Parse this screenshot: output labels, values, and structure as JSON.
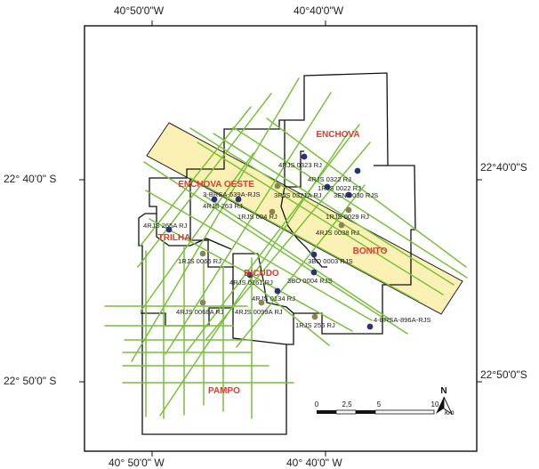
{
  "coordinates": {
    "top_left": "40°50'0\"W",
    "top_right": "40°40'0\"W",
    "bottom_left": "40° 50'0\" W",
    "bottom_right": "40° 40'0\" W",
    "left_upper": "22° 40'0\" S",
    "left_lower": "22° 50'0\" S",
    "right_upper": "22°40'0\"S",
    "right_lower": "22°50'0\"S"
  },
  "fields": [
    {
      "name": "ENCHOVA",
      "key": "enchova"
    },
    {
      "name": "ENCHOVA OESTE",
      "key": "enchova-oeste"
    },
    {
      "name": "TRILHA",
      "key": "trilha"
    },
    {
      "name": "BONITO",
      "key": "bonito"
    },
    {
      "name": "BICUDO",
      "key": "bicudo"
    },
    {
      "name": "PAMPO",
      "key": "pampo"
    }
  ],
  "wells": [
    {
      "label": "4RJS 0323  RJ",
      "style": "navy"
    },
    {
      "label": "4RJS 0322  RJ",
      "style": "navy"
    },
    {
      "label": "1RJS 0022 RJ",
      "style": "navy"
    },
    {
      "label": "3-BRSA-539A-RJS",
      "style": "navy"
    },
    {
      "label": "3RJS 0321A RJ",
      "style": "olive"
    },
    {
      "label": "3EN 0030 RJS",
      "style": "navy"
    },
    {
      "label": "4RJS 263 RJ",
      "style": "navy"
    },
    {
      "label": "1RJS 004  RJ",
      "style": "olive"
    },
    {
      "label": "1RJS 0029  RJ",
      "style": "olive"
    },
    {
      "label": "4RJS 0038  RJ",
      "style": "olive"
    },
    {
      "label": "4RJS 265A RJ",
      "style": "navy"
    },
    {
      "label": "1RJS 0065  RJ",
      "style": "olive"
    },
    {
      "label": "3BO 0003  RJS",
      "style": "navy"
    },
    {
      "label": "4RJS 0161 RJ",
      "style": "navy"
    },
    {
      "label": "3BO 0004  RJS",
      "style": "navy"
    },
    {
      "label": "4RJS 0134  RJ",
      "style": "navy"
    },
    {
      "label": "4RJS 0068A RJ",
      "style": "olive"
    },
    {
      "label": "4RJS 0099A RJ",
      "style": "olive"
    },
    {
      "label": "1RJS 256 RJ",
      "style": "olive"
    },
    {
      "label": "4-BRSA-896A-RJS",
      "style": "navy"
    }
  ],
  "scale_bar": {
    "ticks": [
      "0",
      "2,5",
      "5",
      "10"
    ],
    "unit": "km"
  },
  "north_arrow": {
    "label": "N",
    "icon": "north-arrow-icon"
  },
  "colors": {
    "seismic_lines": "#79c13c",
    "highlight_band_fill": "#fcf1b4",
    "highlight_band_stroke": "#222222",
    "well_navy": "#2b3079",
    "well_olive": "#8a8650",
    "field_label": "#e23a2a",
    "boundary": "#111111"
  }
}
